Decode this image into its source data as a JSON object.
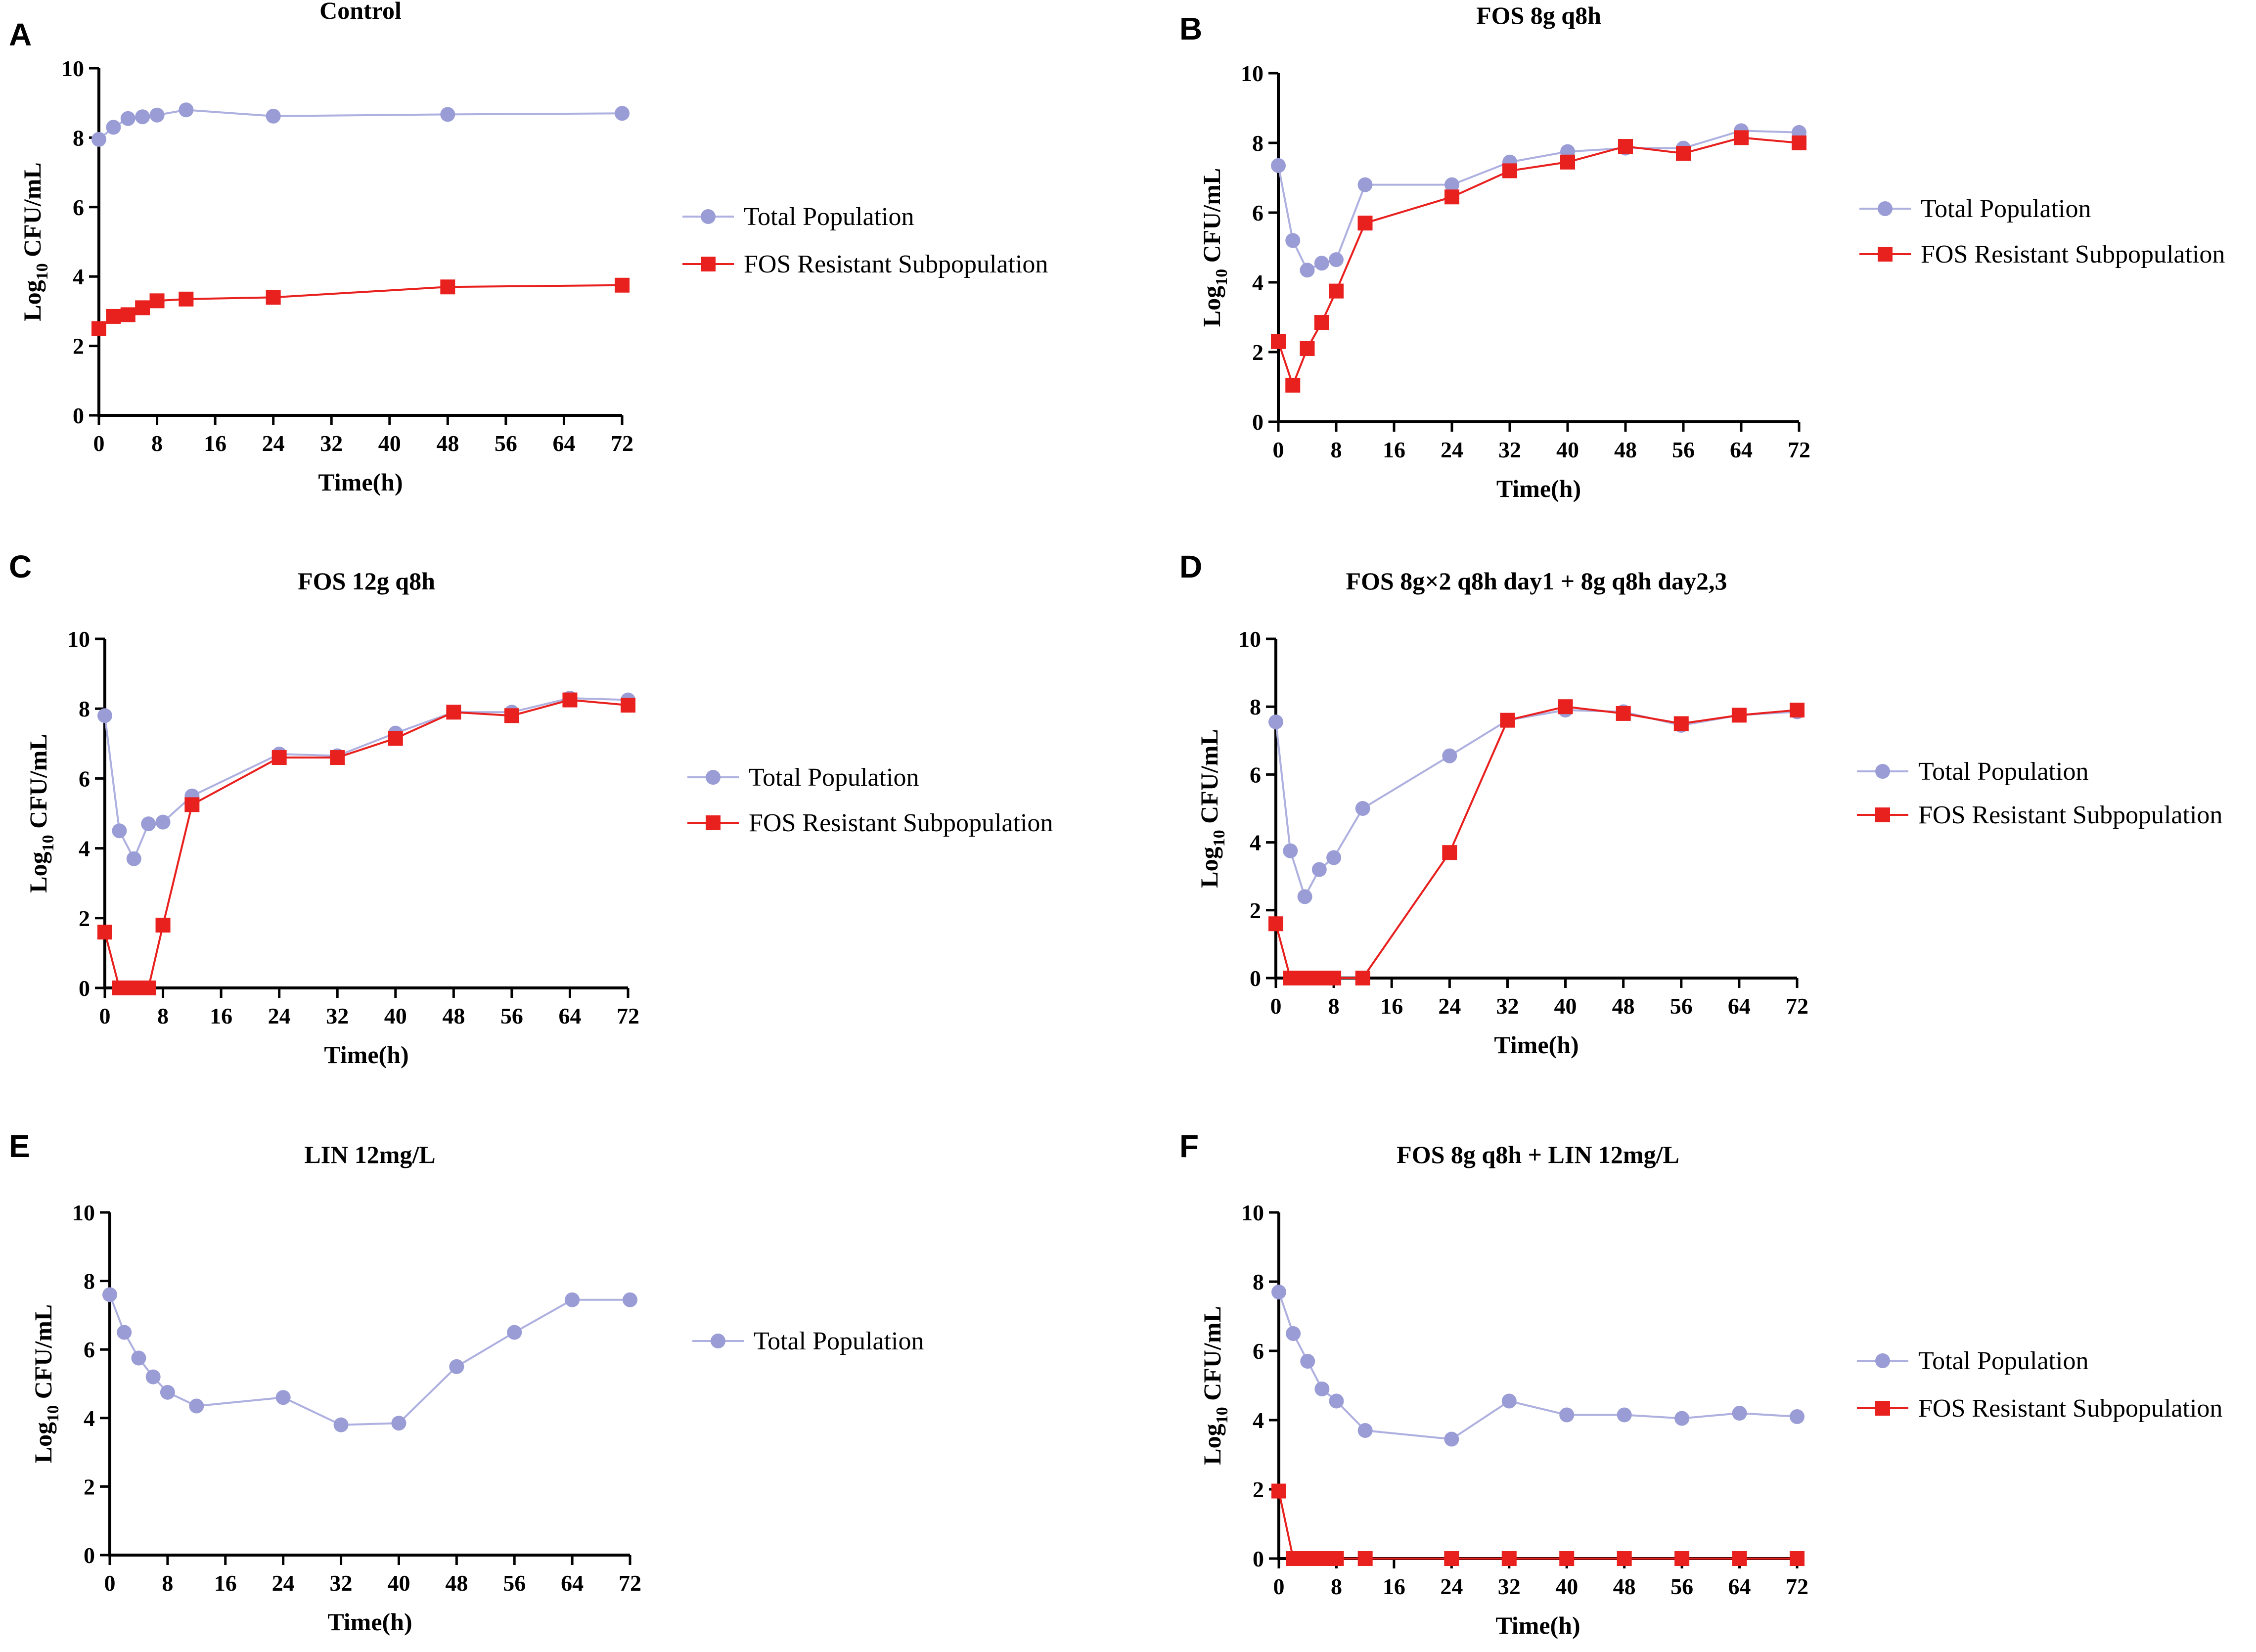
{
  "figure": {
    "legend_labels": {
      "total": "Total Population",
      "resistant": "FOS Resistant Subpopulation"
    },
    "colors": {
      "total": "#9a9cd6",
      "total_line": "#aeb0e0",
      "resistant": "#e8201e",
      "axis": "#000000"
    }
  },
  "chart_data": [
    {
      "panel": "A",
      "type": "line",
      "title": "Control",
      "xlabel": "Time(h)",
      "ylabel_main": "Log",
      "ylabel_sub": "10",
      "ylabel_rest": " CFU/mL",
      "xlim": [
        0,
        72
      ],
      "ylim": [
        0,
        10
      ],
      "xticks": [
        0,
        8,
        16,
        24,
        32,
        40,
        48,
        56,
        64,
        72
      ],
      "yticks": [
        0,
        2,
        4,
        6,
        8,
        10
      ],
      "series": [
        {
          "name": "Total Population",
          "marker": "circle",
          "x": [
            0,
            2,
            4,
            6,
            8,
            12,
            24,
            48,
            72
          ],
          "y": [
            7.95,
            8.3,
            8.55,
            8.6,
            8.65,
            8.8,
            8.62,
            8.67,
            8.7
          ]
        },
        {
          "name": "FOS Resistant Subpopulation",
          "marker": "square",
          "x": [
            0,
            2,
            4,
            6,
            8,
            12,
            24,
            48,
            72
          ],
          "y": [
            2.5,
            2.85,
            2.9,
            3.1,
            3.3,
            3.35,
            3.4,
            3.7,
            3.75
          ]
        }
      ]
    },
    {
      "panel": "B",
      "type": "line",
      "title": "FOS 8g q8h",
      "xlabel": "Time(h)",
      "ylabel_main": "Log",
      "ylabel_sub": "10",
      "ylabel_rest": " CFU/mL",
      "xlim": [
        0,
        72
      ],
      "ylim": [
        0,
        10
      ],
      "xticks": [
        0,
        8,
        16,
        24,
        32,
        40,
        48,
        56,
        64,
        72
      ],
      "yticks": [
        0,
        2,
        4,
        6,
        8,
        10
      ],
      "series": [
        {
          "name": "Total Population",
          "marker": "circle",
          "x": [
            0,
            2,
            4,
            6,
            8,
            12,
            24,
            32,
            40,
            48,
            56,
            64,
            72
          ],
          "y": [
            7.35,
            5.2,
            4.35,
            4.55,
            4.65,
            6.8,
            6.8,
            7.45,
            7.75,
            7.85,
            7.85,
            8.35,
            8.3
          ]
        },
        {
          "name": "FOS Resistant Subpopulation",
          "marker": "square",
          "x": [
            0,
            2,
            4,
            6,
            8,
            12,
            24,
            32,
            40,
            48,
            56,
            64,
            72
          ],
          "y": [
            2.3,
            1.05,
            2.1,
            2.85,
            3.75,
            5.7,
            6.45,
            7.2,
            7.45,
            7.9,
            7.7,
            8.15,
            8.0
          ]
        }
      ]
    },
    {
      "panel": "C",
      "type": "line",
      "title": "FOS 12g q8h",
      "xlabel": "Time(h)",
      "ylabel_main": "Log",
      "ylabel_sub": "10",
      "ylabel_rest": " CFU/mL",
      "xlim": [
        0,
        72
      ],
      "ylim": [
        0,
        10
      ],
      "xticks": [
        0,
        8,
        16,
        24,
        32,
        40,
        48,
        56,
        64,
        72
      ],
      "yticks": [
        0,
        2,
        4,
        6,
        8,
        10
      ],
      "series": [
        {
          "name": "Total Population",
          "marker": "circle",
          "x": [
            0,
            2,
            4,
            6,
            8,
            12,
            24,
            32,
            40,
            48,
            56,
            64,
            72
          ],
          "y": [
            7.8,
            4.5,
            3.7,
            4.7,
            4.75,
            5.5,
            6.7,
            6.65,
            7.3,
            7.9,
            7.9,
            8.3,
            8.25
          ]
        },
        {
          "name": "FOS Resistant Subpopulation",
          "marker": "square",
          "x": [
            0,
            2,
            3,
            4,
            5,
            6,
            8,
            12,
            24,
            32,
            40,
            48,
            56,
            64,
            72
          ],
          "y": [
            1.6,
            0,
            0,
            0,
            0,
            0,
            1.8,
            5.25,
            6.6,
            6.6,
            7.15,
            7.9,
            7.8,
            8.25,
            8.1
          ]
        }
      ]
    },
    {
      "panel": "D",
      "type": "line",
      "title": "FOS 8g×2 q8h day1 + 8g q8h day2,3",
      "xlabel": "Time(h)",
      "ylabel_main": "Log",
      "ylabel_sub": "10",
      "ylabel_rest": " CFU/mL",
      "xlim": [
        0,
        72
      ],
      "ylim": [
        0,
        10
      ],
      "xticks": [
        0,
        8,
        16,
        24,
        32,
        40,
        48,
        56,
        64,
        72
      ],
      "yticks": [
        0,
        2,
        4,
        6,
        8,
        10
      ],
      "series": [
        {
          "name": "Total Population",
          "marker": "circle",
          "x": [
            0,
            2,
            4,
            6,
            8,
            12,
            24,
            32,
            40,
            48,
            56,
            64,
            72
          ],
          "y": [
            7.55,
            3.75,
            2.4,
            3.2,
            3.55,
            5.0,
            6.55,
            7.6,
            7.9,
            7.85,
            7.45,
            7.75,
            7.85
          ]
        },
        {
          "name": "FOS Resistant Subpopulation",
          "marker": "square",
          "x": [
            0,
            2,
            3,
            4,
            5,
            6,
            7,
            8,
            12,
            24,
            32,
            40,
            48,
            56,
            64,
            72
          ],
          "y": [
            1.6,
            0,
            0,
            0,
            0,
            0,
            0,
            0,
            0,
            3.7,
            7.6,
            8.0,
            7.8,
            7.5,
            7.75,
            7.9
          ]
        }
      ]
    },
    {
      "panel": "E",
      "type": "line",
      "title": "LIN 12mg/L",
      "xlabel": "Time(h)",
      "ylabel_main": "Log",
      "ylabel_sub": "10",
      "ylabel_rest": " CFU/mL",
      "xlim": [
        0,
        72
      ],
      "ylim": [
        0,
        10
      ],
      "xticks": [
        0,
        8,
        16,
        24,
        32,
        40,
        48,
        56,
        64,
        72
      ],
      "yticks": [
        0,
        2,
        4,
        6,
        8,
        10
      ],
      "series": [
        {
          "name": "Total Population",
          "marker": "circle",
          "x": [
            0,
            2,
            4,
            6,
            8,
            12,
            24,
            32,
            40,
            48,
            56,
            64,
            72
          ],
          "y": [
            7.6,
            6.5,
            5.75,
            5.2,
            4.75,
            4.35,
            4.6,
            3.8,
            3.85,
            5.5,
            6.5,
            7.45,
            7.45
          ]
        }
      ]
    },
    {
      "panel": "F",
      "type": "line",
      "title": "FOS 8g q8h + LIN 12mg/L",
      "xlabel": "Time(h)",
      "ylabel_main": "Log",
      "ylabel_sub": "10",
      "ylabel_rest": " CFU/mL",
      "xlim": [
        0,
        72
      ],
      "ylim": [
        0,
        10
      ],
      "xticks": [
        0,
        8,
        16,
        24,
        32,
        40,
        48,
        56,
        64,
        72
      ],
      "yticks": [
        0,
        2,
        4,
        6,
        8,
        10
      ],
      "series": [
        {
          "name": "Total Population",
          "marker": "circle",
          "x": [
            0,
            2,
            4,
            6,
            8,
            12,
            24,
            32,
            40,
            48,
            56,
            64,
            72
          ],
          "y": [
            7.7,
            6.5,
            5.7,
            4.9,
            4.55,
            3.7,
            3.45,
            4.55,
            4.15,
            4.15,
            4.05,
            4.2,
            4.1
          ]
        },
        {
          "name": "FOS Resistant Subpopulation",
          "marker": "square",
          "x": [
            0,
            2,
            3,
            4,
            5,
            6,
            7,
            8,
            12,
            24,
            32,
            40,
            48,
            56,
            64,
            72
          ],
          "y": [
            1.95,
            0,
            0,
            0,
            0,
            0,
            0,
            0,
            0,
            0,
            0,
            0,
            0,
            0,
            0,
            0
          ]
        }
      ]
    }
  ]
}
